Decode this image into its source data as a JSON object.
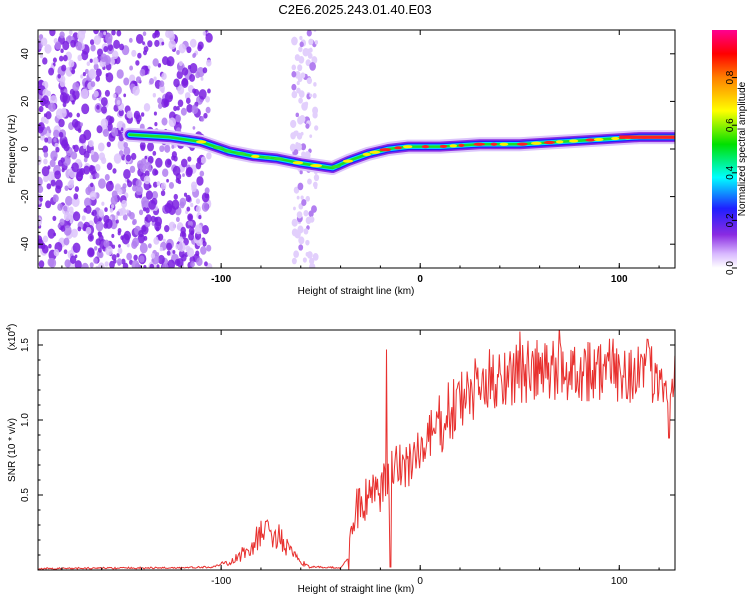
{
  "title": "C2E6.2025.243.01.40.E03",
  "chart_data": [
    {
      "type": "heatmap",
      "xlabel": "Height of straight line (km)",
      "ylabel": "Frequency (Hz)",
      "xlim": [
        -192,
        128
      ],
      "ylim": [
        -50,
        50
      ],
      "xticks": [
        -100,
        0,
        100
      ],
      "yticks": [
        -40,
        -20,
        0,
        20,
        40
      ],
      "noise_region_x": [
        -192,
        -112
      ],
      "noise_band_x": [
        -64,
        -52
      ],
      "ridge": [
        {
          "x": -146,
          "y": 6
        },
        {
          "x": -126,
          "y": 5
        },
        {
          "x": -110,
          "y": 3
        },
        {
          "x": -96,
          "y": -1
        },
        {
          "x": -84,
          "y": -3
        },
        {
          "x": -72,
          "y": -4
        },
        {
          "x": -60,
          "y": -6
        },
        {
          "x": -52,
          "y": -7
        },
        {
          "x": -44,
          "y": -8
        },
        {
          "x": -36,
          "y": -5
        },
        {
          "x": -26,
          "y": -2
        },
        {
          "x": -16,
          "y": 0
        },
        {
          "x": -6,
          "y": 1
        },
        {
          "x": 10,
          "y": 1
        },
        {
          "x": 30,
          "y": 2
        },
        {
          "x": 50,
          "y": 2
        },
        {
          "x": 70,
          "y": 3
        },
        {
          "x": 90,
          "y": 4
        },
        {
          "x": 110,
          "y": 5
        },
        {
          "x": 128,
          "y": 5
        }
      ],
      "colorbar": {
        "label": "Normalized spectral amplitude",
        "range": [
          0,
          1
        ],
        "ticks": [
          "0.0",
          "0.2",
          "0.4",
          "0.6",
          "0.8"
        ]
      }
    },
    {
      "type": "line",
      "xlabel": "Height of straight line (km)",
      "ylabel": "SNR (10 * v/v)",
      "scale_note": "(x10",
      "scale_exp": "4",
      "scale_close": ")",
      "xlim": [
        -192,
        128
      ],
      "ylim": [
        0,
        1.6
      ],
      "xticks": [
        -100,
        0,
        100
      ],
      "yticks": [
        "0.5",
        "1.0",
        "1.5"
      ],
      "series": [
        {
          "color": "#e8312f",
          "envelope": [
            {
              "x": -192,
              "y": 0.01
            },
            {
              "x": -120,
              "y": 0.015
            },
            {
              "x": -105,
              "y": 0.02
            },
            {
              "x": -95,
              "y": 0.05
            },
            {
              "x": -85,
              "y": 0.15
            },
            {
              "x": -80,
              "y": 0.24
            },
            {
              "x": -75,
              "y": 0.26
            },
            {
              "x": -70,
              "y": 0.2
            },
            {
              "x": -62,
              "y": 0.07
            },
            {
              "x": -55,
              "y": 0.02
            },
            {
              "x": -40,
              "y": 0.015
            },
            {
              "x": -36,
              "y": 0.08
            },
            {
              "x": -33,
              "y": 0.4
            },
            {
              "x": -28,
              "y": 0.45
            },
            {
              "x": -20,
              "y": 0.52
            },
            {
              "x": -12,
              "y": 0.67
            },
            {
              "x": 0,
              "y": 0.78
            },
            {
              "x": 10,
              "y": 0.97
            },
            {
              "x": 20,
              "y": 1.12
            },
            {
              "x": 30,
              "y": 1.22
            },
            {
              "x": 40,
              "y": 1.3
            },
            {
              "x": 60,
              "y": 1.32
            },
            {
              "x": 80,
              "y": 1.34
            },
            {
              "x": 100,
              "y": 1.33
            },
            {
              "x": 128,
              "y": 1.31
            }
          ],
          "spikes": [
            {
              "x": -17,
              "y": 1.47
            },
            {
              "x": -15,
              "y": 0.02
            },
            {
              "x": 50,
              "y": 1.59
            },
            {
              "x": 70,
              "y": 1.62
            },
            {
              "x": 125,
              "y": 0.88
            }
          ]
        }
      ]
    }
  ]
}
